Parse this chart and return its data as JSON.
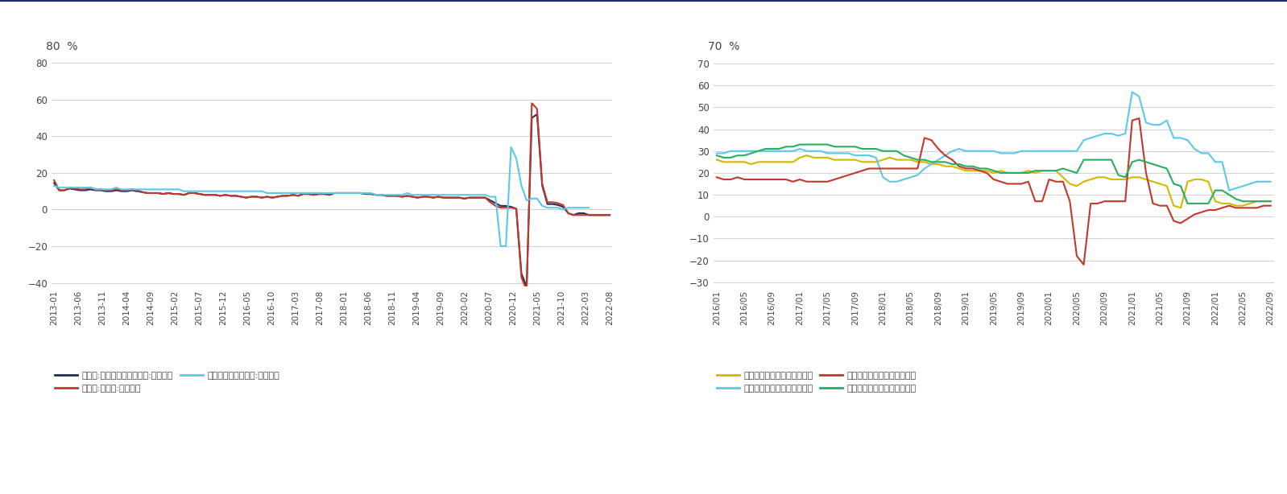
{
  "chart1": {
    "title_y": "80  %",
    "ylim": [
      -42,
      82
    ],
    "yticks": [
      -40,
      -20,
      0,
      20,
      40,
      60,
      80
    ],
    "xtick_labels": [
      "2013-01",
      "2013-06",
      "2013-11",
      "2014-04",
      "2014-09",
      "2015-02",
      "2015-07",
      "2015-12",
      "2016-05",
      "2016-10",
      "2017-03",
      "2017-08",
      "2018-01",
      "2018-06",
      "2018-11",
      "2019-04",
      "2019-09",
      "2020-02",
      "2020-07",
      "2020-12",
      "2021-05",
      "2021-10",
      "2022-03",
      "2022-08"
    ],
    "n_xticks": 24,
    "series": {
      "retail_textile": {
        "label": "零售额:服装鞋帽针纺织品类:累计同比",
        "color": "#1e2d5f",
        "linewidth": 1.5,
        "values": [
          14.5,
          10.5,
          10.5,
          11.5,
          11.0,
          10.5,
          10.5,
          11.0,
          10.5,
          10.5,
          10.0,
          10.0,
          10.5,
          10.0,
          10.0,
          10.5,
          10.0,
          9.5,
          9.0,
          9.0,
          9.0,
          8.5,
          9.0,
          8.5,
          8.5,
          8.0,
          9.0,
          9.0,
          8.5,
          8.0,
          8.0,
          8.0,
          7.5,
          8.0,
          7.5,
          7.5,
          7.0,
          6.5,
          7.0,
          7.0,
          6.5,
          7.0,
          6.5,
          7.0,
          7.5,
          7.5,
          8.0,
          7.5,
          8.5,
          8.5,
          8.0,
          8.5,
          8.5,
          8.0,
          9.0,
          9.0,
          9.0,
          9.0,
          9.0,
          9.0,
          8.5,
          8.5,
          8.0,
          8.0,
          7.5,
          7.5,
          7.5,
          7.0,
          7.5,
          7.0,
          6.5,
          7.0,
          7.0,
          6.5,
          7.0,
          6.5,
          6.5,
          6.5,
          6.5,
          6.0,
          6.5,
          6.5,
          6.5,
          6.5,
          5.0,
          3.5,
          2.0,
          2.0,
          1.5,
          0.5,
          -35,
          -42,
          50,
          52,
          13,
          3.0,
          3.0,
          2.5,
          1.5,
          -2,
          -3,
          -2,
          -2,
          -3,
          -3,
          -3,
          -3,
          -3
        ]
      },
      "retail_apparel": {
        "label": "零售额:服装类:累计同比",
        "color": "#c0392b",
        "linewidth": 1.5,
        "values": [
          16.0,
          10.5,
          10.5,
          12.0,
          11.5,
          11.0,
          11.0,
          12.0,
          11.0,
          11.0,
          10.5,
          10.5,
          11.0,
          10.5,
          10.5,
          11.0,
          10.5,
          9.5,
          9.0,
          9.0,
          9.0,
          8.5,
          9.0,
          8.5,
          8.5,
          8.0,
          9.0,
          9.0,
          8.5,
          8.0,
          8.0,
          8.0,
          7.5,
          8.0,
          7.5,
          7.5,
          7.0,
          6.5,
          7.0,
          7.0,
          6.5,
          7.0,
          6.5,
          7.0,
          7.5,
          7.5,
          8.0,
          7.5,
          8.5,
          8.5,
          8.0,
          8.5,
          8.5,
          8.0,
          9.0,
          9.0,
          9.0,
          9.0,
          9.0,
          9.0,
          8.5,
          8.5,
          8.0,
          8.0,
          7.5,
          7.5,
          7.5,
          7.0,
          7.5,
          7.0,
          6.5,
          7.0,
          7.0,
          6.5,
          7.0,
          6.5,
          6.5,
          6.5,
          6.5,
          6.0,
          6.5,
          6.5,
          6.5,
          6.5,
          4.0,
          2.0,
          1.0,
          1.0,
          1.0,
          0.5,
          -37,
          -44,
          58,
          55,
          14,
          4.0,
          4.0,
          3.5,
          2.5,
          -2,
          -3,
          -3,
          -3,
          -3,
          -3,
          -3,
          -3,
          -3
        ]
      },
      "total_retail": {
        "label": "社会消费品零售总额:累计同比",
        "color": "#5bc8e8",
        "linewidth": 1.5,
        "values": [
          13,
          12,
          12,
          12,
          12,
          12,
          12,
          12,
          11,
          11,
          11,
          11,
          12,
          11,
          11,
          11,
          11,
          11,
          11,
          11,
          11,
          11,
          11,
          11,
          11,
          10,
          10,
          10,
          10,
          10,
          10,
          10,
          10,
          10,
          10,
          10,
          10,
          10,
          10,
          10,
          10,
          9,
          9,
          9,
          9,
          9,
          9,
          9,
          9,
          9,
          9,
          9,
          9,
          9,
          9,
          9,
          9,
          9,
          9,
          9,
          9,
          9,
          8,
          8,
          8,
          8,
          8,
          8,
          9,
          8,
          8,
          8,
          8,
          8,
          8,
          8,
          8,
          8,
          8,
          8,
          8,
          8,
          8,
          8,
          7,
          7,
          -20,
          -20,
          34,
          28,
          13,
          5,
          6,
          6,
          2,
          1,
          1,
          1,
          0,
          1,
          1,
          1,
          1,
          1
        ]
      }
    },
    "legend": [
      {
        "label": "零售额:服装鞋帽针纺织品类:累计同比",
        "color": "#1e2d5f"
      },
      {
        "label": "零售额:服装类:累计同比",
        "color": "#c0392b"
      },
      {
        "label": "社会消费品零售总额:累计同比",
        "color": "#5bc8e8"
      }
    ]
  },
  "chart2": {
    "title_y": "70  %",
    "ylim": [
      -32,
      72
    ],
    "yticks": [
      -30,
      -20,
      -10,
      0,
      10,
      20,
      30,
      40,
      50,
      60,
      70
    ],
    "xtick_labels": [
      "2016/01",
      "2016/05",
      "2016/09",
      "2017/01",
      "2017/05",
      "2017/09",
      "2018/01",
      "2018/05",
      "2018/09",
      "2019/01",
      "2019/05",
      "2019/09",
      "2020/01",
      "2020/05",
      "2020/09",
      "2021/01",
      "2021/05",
      "2021/09",
      "2022/01",
      "2022/05",
      "2022/09"
    ],
    "n_xticks": 21,
    "series": {
      "physical": {
        "label": "实物商品网上零售额累计同比",
        "color": "#d4b800",
        "linewidth": 1.5,
        "values": [
          26,
          25,
          25,
          25,
          25,
          24,
          25,
          25,
          25,
          25,
          25,
          25,
          27,
          28,
          27,
          27,
          27,
          26,
          26,
          26,
          26,
          25,
          25,
          25,
          26,
          27,
          26,
          26,
          26,
          25,
          25,
          24,
          24,
          23,
          23,
          22,
          21,
          21,
          21,
          21,
          20,
          21,
          20,
          20,
          20,
          21,
          20,
          21,
          21,
          21,
          18,
          15,
          14,
          16,
          17,
          18,
          18,
          17,
          17,
          17,
          18,
          18,
          17,
          16,
          15,
          14,
          5,
          4,
          16,
          17,
          17,
          16,
          7,
          6,
          6,
          5,
          5,
          6,
          7,
          7,
          7
        ]
      },
      "food": {
        "label": "吃类商品网上零售额累计同比",
        "color": "#5bc8e8",
        "linewidth": 1.5,
        "values": [
          29,
          29,
          30,
          30,
          30,
          30,
          30,
          30,
          30,
          30,
          30,
          30,
          31,
          30,
          30,
          30,
          29,
          29,
          29,
          29,
          28,
          28,
          28,
          27,
          18,
          16,
          16,
          17,
          18,
          19,
          22,
          24,
          26,
          28,
          30,
          31,
          30,
          30,
          30,
          30,
          30,
          29,
          29,
          29,
          30,
          30,
          30,
          30,
          30,
          30,
          30,
          30,
          30,
          35,
          36,
          37,
          38,
          38,
          37,
          38,
          57,
          55,
          43,
          42,
          42,
          44,
          36,
          36,
          35,
          31,
          29,
          29,
          25,
          25,
          12,
          13,
          14,
          15,
          16,
          16,
          16
        ]
      },
      "clothing": {
        "label": "穿类商品网上零售额累计同比",
        "color": "#c0392b",
        "linewidth": 1.5,
        "values": [
          18,
          17,
          17,
          18,
          17,
          17,
          17,
          17,
          17,
          17,
          17,
          16,
          17,
          16,
          16,
          16,
          16,
          17,
          18,
          19,
          20,
          21,
          22,
          22,
          22,
          22,
          22,
          22,
          22,
          22,
          36,
          35,
          31,
          28,
          26,
          23,
          22,
          22,
          21,
          20,
          17,
          16,
          15,
          15,
          15,
          16,
          7,
          7,
          17,
          16,
          16,
          7,
          -18,
          -22,
          6,
          6,
          7,
          7,
          7,
          7,
          44,
          45,
          20,
          6,
          5,
          5,
          -2,
          -3,
          -1,
          1,
          2,
          3,
          3,
          4,
          5,
          4,
          4,
          4,
          4,
          5,
          5
        ]
      },
      "goods": {
        "label": "用类商品网上零售额累计同比",
        "color": "#27ae60",
        "linewidth": 1.5,
        "values": [
          28,
          27,
          27,
          28,
          28,
          29,
          30,
          31,
          31,
          31,
          32,
          32,
          33,
          33,
          33,
          33,
          33,
          32,
          32,
          32,
          32,
          31,
          31,
          31,
          30,
          30,
          30,
          28,
          27,
          26,
          26,
          25,
          25,
          25,
          24,
          24,
          23,
          23,
          22,
          22,
          21,
          20,
          20,
          20,
          20,
          20,
          21,
          21,
          21,
          21,
          22,
          21,
          20,
          26,
          26,
          26,
          26,
          26,
          19,
          18,
          25,
          26,
          25,
          24,
          23,
          22,
          15,
          14,
          6,
          6,
          6,
          6,
          12,
          12,
          10,
          8,
          7,
          7,
          7,
          7,
          7
        ]
      }
    },
    "legend": [
      {
        "label": "实物商品网上零售额累计同比",
        "color": "#d4b800"
      },
      {
        "label": "吃类商品网上零售额累计同比",
        "color": "#5bc8e8"
      },
      {
        "label": "穿类商品网上零售额累计同比",
        "color": "#c0392b"
      },
      {
        "label": "用类商品网上零售额累计同比",
        "color": "#27ae60"
      }
    ]
  },
  "bg_color": "#ffffff",
  "grid_color": "#d0d0d0",
  "text_color": "#444444",
  "font_size": 8.0
}
